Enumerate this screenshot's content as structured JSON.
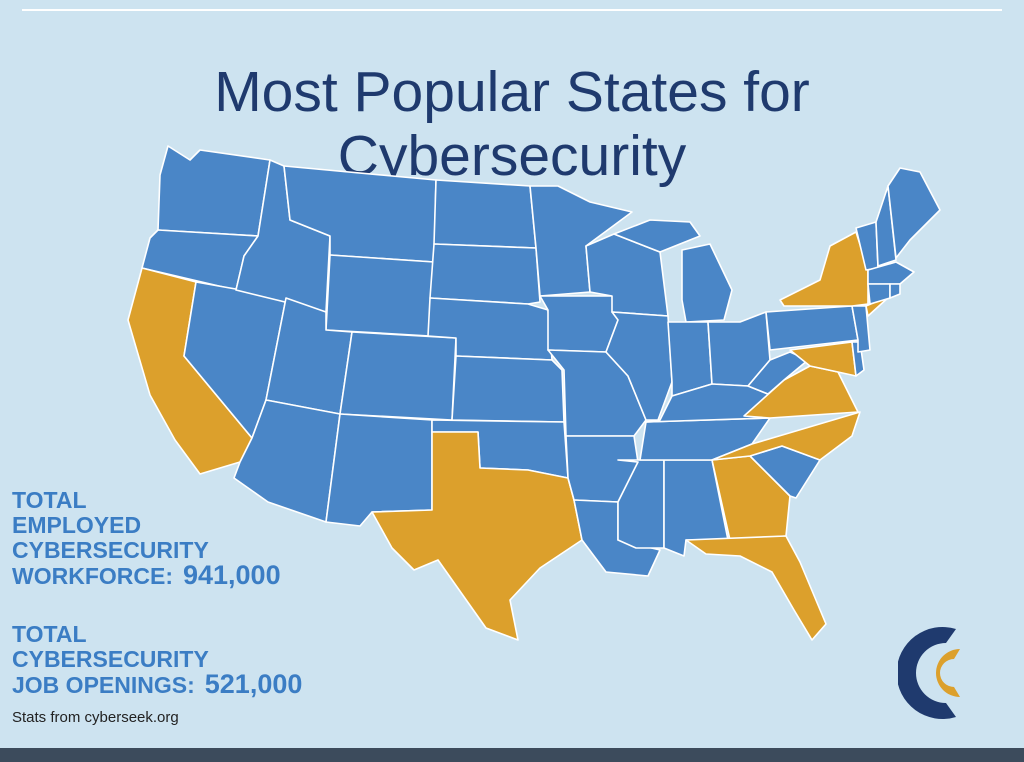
{
  "title": {
    "line1": "Most Popular States for",
    "line2": "Cybersecurity"
  },
  "map": {
    "colors": {
      "background": "#cde3f0",
      "state_default": "#4a86c7",
      "state_highlight": "#dca02c",
      "border": "#ffffff"
    },
    "highlighted_states": [
      "California",
      "Texas",
      "Florida",
      "Georgia",
      "North Carolina",
      "Virginia",
      "Maryland",
      "New York",
      "New Jersey"
    ]
  },
  "stats": {
    "employed": {
      "line1": "TOTAL",
      "line2": "EMPLOYED",
      "line3": "CYBERSECURITY",
      "line4": "WORKFORCE:",
      "value": "941,000"
    },
    "openings": {
      "line1": "TOTAL",
      "line2": "CYBERSECURITY",
      "line3": "JOB OPENINGS:",
      "value": "521,000"
    }
  },
  "source": "Stats from cyberseek.org",
  "logo": {
    "icon": "cyberseek-logo-icon",
    "colors": {
      "outer": "#1f3a6e",
      "inner": "#dca02c"
    }
  }
}
